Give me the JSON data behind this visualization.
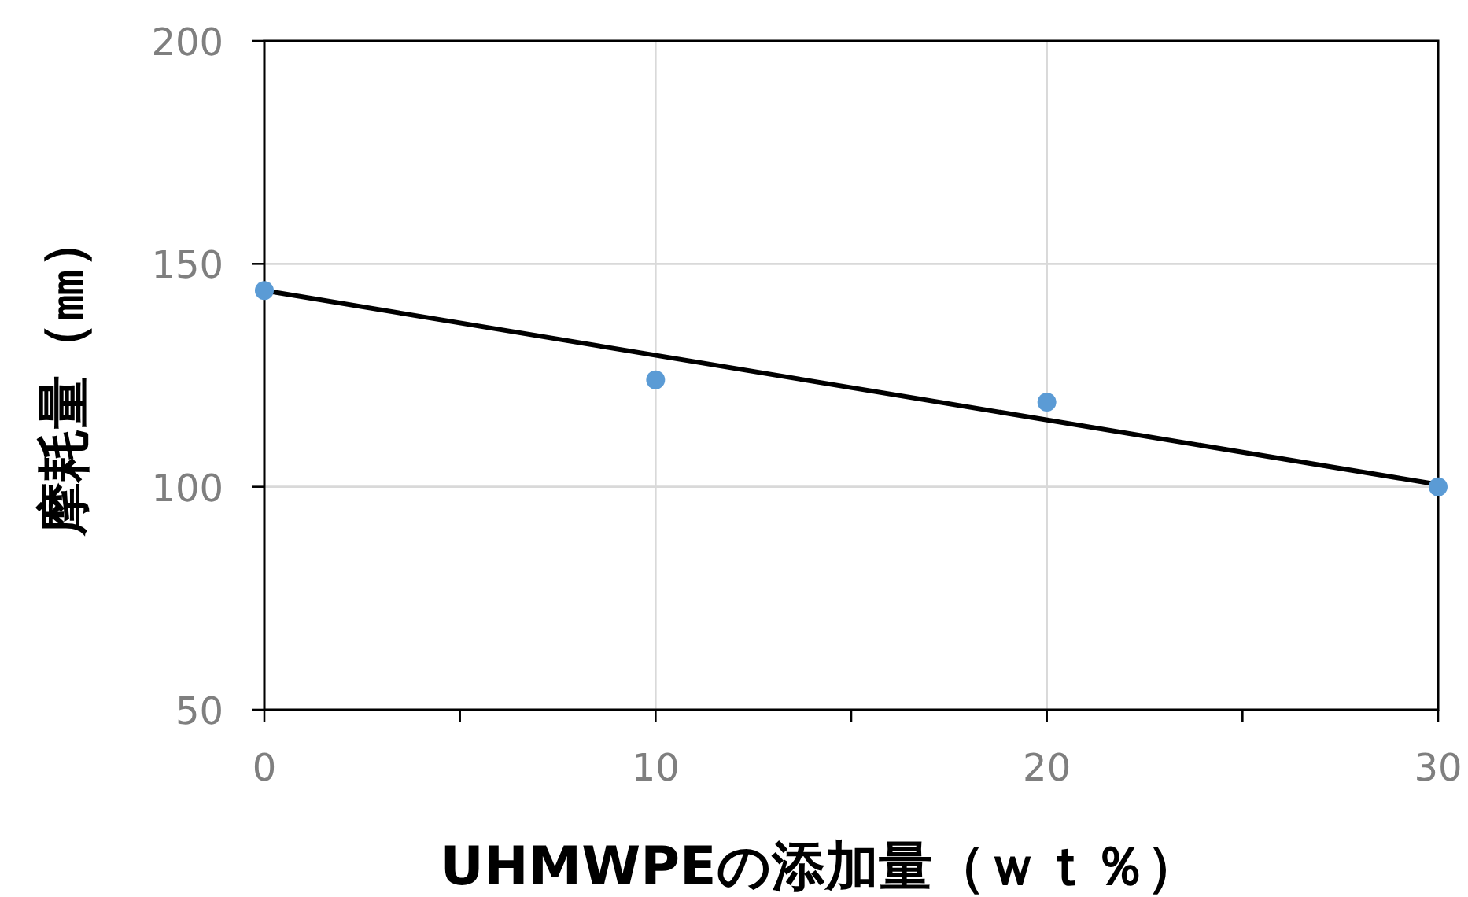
{
  "chart_data": {
    "type": "scatter",
    "xlabel": "UHMWPEの添加量（ｗｔ％）",
    "ylabel": "摩耗量（㎜）",
    "xlim": [
      0,
      30
    ],
    "ylim": [
      50,
      200
    ],
    "xticks": [
      0,
      {
        "value": 5,
        "label": null
      },
      10,
      {
        "value": 15,
        "label": null
      },
      20,
      {
        "value": 25,
        "label": null
      },
      30
    ],
    "yticks": [
      50,
      100,
      150,
      200
    ],
    "grid": true,
    "series": [
      {
        "color": "#5b9bd5",
        "marker": "circle",
        "x": [
          0,
          10,
          20,
          30
        ],
        "values": [
          144,
          124,
          119,
          100
        ]
      },
      {
        "type": "line",
        "color": "#000000",
        "marker": "none",
        "line_style": "solid",
        "x": [
          0,
          30
        ],
        "values": [
          144,
          100.5
        ]
      }
    ]
  }
}
